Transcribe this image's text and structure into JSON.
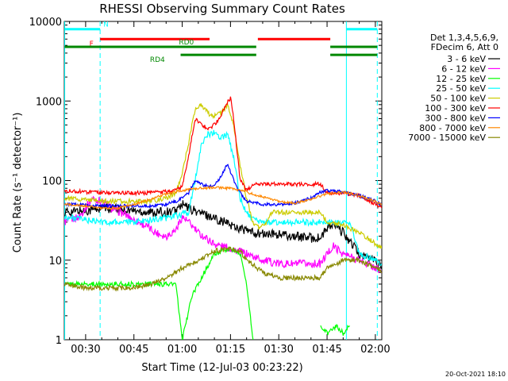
{
  "chart_data": {
    "type": "line",
    "title": "RHESSI Observing Summary Count Rates",
    "xlabel": "Start Time (12-Jul-03 00:23:22)",
    "ylabel": "Count Rate (s⁻¹ detector⁻¹)",
    "x_units": "minutes since 00:00 UT",
    "xlim": [
      23.37,
      122
    ],
    "ylim": [
      1,
      10000
    ],
    "yscale": "log",
    "x_ticks": [
      {
        "value": 30,
        "label": "00:30"
      },
      {
        "value": 45,
        "label": "00:45"
      },
      {
        "value": 60,
        "label": "01:00"
      },
      {
        "value": 75,
        "label": "01:15"
      },
      {
        "value": 90,
        "label": "01:30"
      },
      {
        "value": 105,
        "label": "01:45"
      },
      {
        "value": 120,
        "label": "02:00"
      }
    ],
    "y_ticks": [
      {
        "value": 1,
        "label": "1"
      },
      {
        "value": 10,
        "label": "10"
      },
      {
        "value": 100,
        "label": "100"
      },
      {
        "value": 1000,
        "label": "1000"
      },
      {
        "value": 10000,
        "label": "10000"
      }
    ],
    "legend_title": [
      "Det 1,3,4,5,6,9,",
      "FDecim 6, Att 0"
    ],
    "series": [
      {
        "name": "3 - 6 keV",
        "color": "#000000",
        "x": [
          23.5,
          30,
          35,
          40,
          45,
          50,
          55,
          58,
          60,
          62,
          65,
          70,
          75,
          78,
          82,
          86,
          90,
          95,
          100,
          103,
          105,
          107,
          110,
          115,
          120,
          122
        ],
        "y": [
          40,
          42,
          45,
          44,
          42,
          40,
          40,
          42,
          50,
          45,
          40,
          34,
          28,
          25,
          22,
          21,
          21,
          20,
          19,
          19,
          25,
          28,
          22,
          12,
          10,
          8
        ]
      },
      {
        "name": "6 - 12 keV",
        "color": "#ff00ff",
        "x": [
          23.5,
          28,
          32,
          35,
          38,
          42,
          45,
          48,
          52,
          55,
          58,
          60,
          62,
          65,
          70,
          75,
          80,
          85,
          90,
          95,
          100,
          103,
          105,
          107,
          110,
          115,
          120,
          122
        ],
        "y": [
          30,
          35,
          60,
          55,
          45,
          38,
          32,
          28,
          22,
          20,
          24,
          35,
          30,
          22,
          16,
          14,
          12,
          10,
          9,
          9,
          9,
          9,
          12,
          15,
          12,
          10,
          8,
          7
        ]
      },
      {
        "name": "12 - 25 keV",
        "color": "#00ff00",
        "x": [
          23.5,
          30,
          35,
          40,
          45,
          50,
          55,
          58,
          60,
          63,
          66,
          70,
          75,
          78,
          80,
          82
        ],
        "y": [
          5,
          5,
          5,
          5,
          5,
          5,
          5,
          5,
          1,
          3.5,
          6,
          12,
          14,
          12,
          5,
          1
        ],
        "x2": [
          103,
          105,
          108,
          110,
          112
        ],
        "y2": [
          1.5,
          1.2,
          1.5,
          1.2,
          1.5
        ]
      },
      {
        "name": "25 - 50 keV",
        "color": "#00ffff",
        "x": [
          23.5,
          30,
          35,
          40,
          45,
          50,
          55,
          58,
          60,
          62,
          64,
          66,
          68,
          70,
          72,
          74,
          76,
          78,
          80,
          82,
          84,
          86,
          88,
          90,
          92,
          95,
          100,
          103,
          105,
          107,
          110,
          112,
          115,
          120,
          122
        ],
        "y": [
          35,
          32,
          30,
          30,
          30,
          32,
          34,
          36,
          38,
          40,
          100,
          300,
          380,
          400,
          350,
          380,
          200,
          60,
          40,
          32,
          30,
          30,
          30,
          30,
          30,
          30,
          30,
          30,
          30,
          30,
          30,
          30,
          12,
          10,
          9
        ]
      },
      {
        "name": "50 - 100 keV",
        "color": "#cccc00",
        "x": [
          23.5,
          30,
          35,
          40,
          45,
          50,
          55,
          58,
          60,
          62,
          64,
          66,
          68,
          70,
          72,
          74,
          76,
          78,
          80,
          82,
          84,
          86,
          88,
          90,
          95,
          100,
          103,
          105,
          110,
          115,
          120,
          122
        ],
        "y": [
          60,
          58,
          55,
          55,
          55,
          55,
          60,
          70,
          120,
          300,
          800,
          900,
          700,
          650,
          700,
          900,
          500,
          150,
          60,
          30,
          25,
          30,
          40,
          40,
          40,
          40,
          40,
          30,
          28,
          22,
          16,
          14
        ]
      },
      {
        "name": "100 - 300 keV",
        "color": "#ff0000",
        "x": [
          23.5,
          30,
          35,
          40,
          45,
          50,
          55,
          58,
          60,
          62,
          64,
          66,
          68,
          70,
          72,
          74,
          75,
          76,
          78,
          80,
          82,
          84,
          86,
          88,
          90,
          95,
          100,
          103,
          105,
          110,
          115,
          120,
          122
        ],
        "y": [
          75,
          72,
          70,
          70,
          70,
          70,
          72,
          75,
          85,
          200,
          600,
          500,
          450,
          500,
          650,
          950,
          1100,
          600,
          100,
          75,
          90,
          90,
          90,
          90,
          90,
          90,
          90,
          90,
          70,
          70,
          65,
          50,
          45
        ]
      },
      {
        "name": "300 - 800 keV",
        "color": "#0000ff",
        "x": [
          23.5,
          30,
          35,
          40,
          45,
          50,
          55,
          58,
          60,
          62,
          64,
          66,
          68,
          70,
          72,
          74,
          75,
          76,
          78,
          80,
          85,
          90,
          95,
          100,
          103,
          105,
          110,
          115,
          120,
          122
        ],
        "y": [
          50,
          50,
          48,
          48,
          48,
          48,
          50,
          55,
          60,
          70,
          100,
          90,
          85,
          90,
          110,
          160,
          130,
          100,
          70,
          55,
          50,
          50,
          52,
          60,
          72,
          75,
          72,
          65,
          55,
          50
        ]
      },
      {
        "name": "800 - 7000 keV",
        "color": "#ff8800",
        "x": [
          23.5,
          30,
          35,
          40,
          45,
          50,
          55,
          60,
          65,
          70,
          75,
          80,
          85,
          90,
          95,
          100,
          105,
          110,
          115,
          120,
          122
        ],
        "y": [
          50,
          48,
          45,
          45,
          50,
          58,
          68,
          75,
          80,
          82,
          80,
          72,
          62,
          55,
          52,
          58,
          68,
          72,
          65,
          55,
          50
        ]
      },
      {
        "name": "7000 - 15000 keV",
        "color": "#888800",
        "x": [
          23.5,
          30,
          35,
          40,
          45,
          50,
          55,
          58,
          60,
          65,
          70,
          75,
          78,
          80,
          85,
          90,
          95,
          100,
          103,
          105,
          108,
          110,
          115,
          120,
          122
        ],
        "y": [
          5,
          4.5,
          4.5,
          4.5,
          4.5,
          5,
          6,
          7,
          8,
          10,
          13,
          14,
          13,
          10,
          7,
          6,
          6,
          6,
          6,
          8,
          9,
          10,
          10,
          8,
          7
        ]
      }
    ],
    "vertical_markers": [
      {
        "x": 23.5,
        "style": "solid",
        "color": "#00ffff"
      },
      {
        "x": 34.5,
        "style": "dashed",
        "color": "#00ffff"
      },
      {
        "x": 111,
        "style": "solid",
        "color": "#00ffff"
      },
      {
        "x": 120.6,
        "style": "dashed",
        "color": "#00ffff"
      }
    ],
    "annotations": [
      {
        "label": "N",
        "color": "#00ffff",
        "value": 8000,
        "x_label": 36.3,
        "segments": [
          [
            23.5,
            34.5
          ],
          [
            111,
            120.6
          ]
        ]
      },
      {
        "label": "F",
        "color": "#ff0000",
        "value": 6000,
        "x_label": 31.8,
        "segments": [
          [
            34.5,
            68.5
          ],
          [
            83.5,
            106
          ]
        ]
      },
      {
        "label": "RD0",
        "color": "#008800",
        "value": 4800,
        "x_label": 61.3,
        "segments": [
          [
            23.5,
            83
          ],
          [
            106,
            120.6
          ]
        ]
      },
      {
        "label": "RD4",
        "color": "#008800",
        "value": 3800,
        "x_label": 52.3,
        "segments": [
          [
            59.5,
            83
          ],
          [
            106,
            120.6
          ]
        ]
      }
    ],
    "timestamp": "20-Oct-2021 18:10"
  }
}
